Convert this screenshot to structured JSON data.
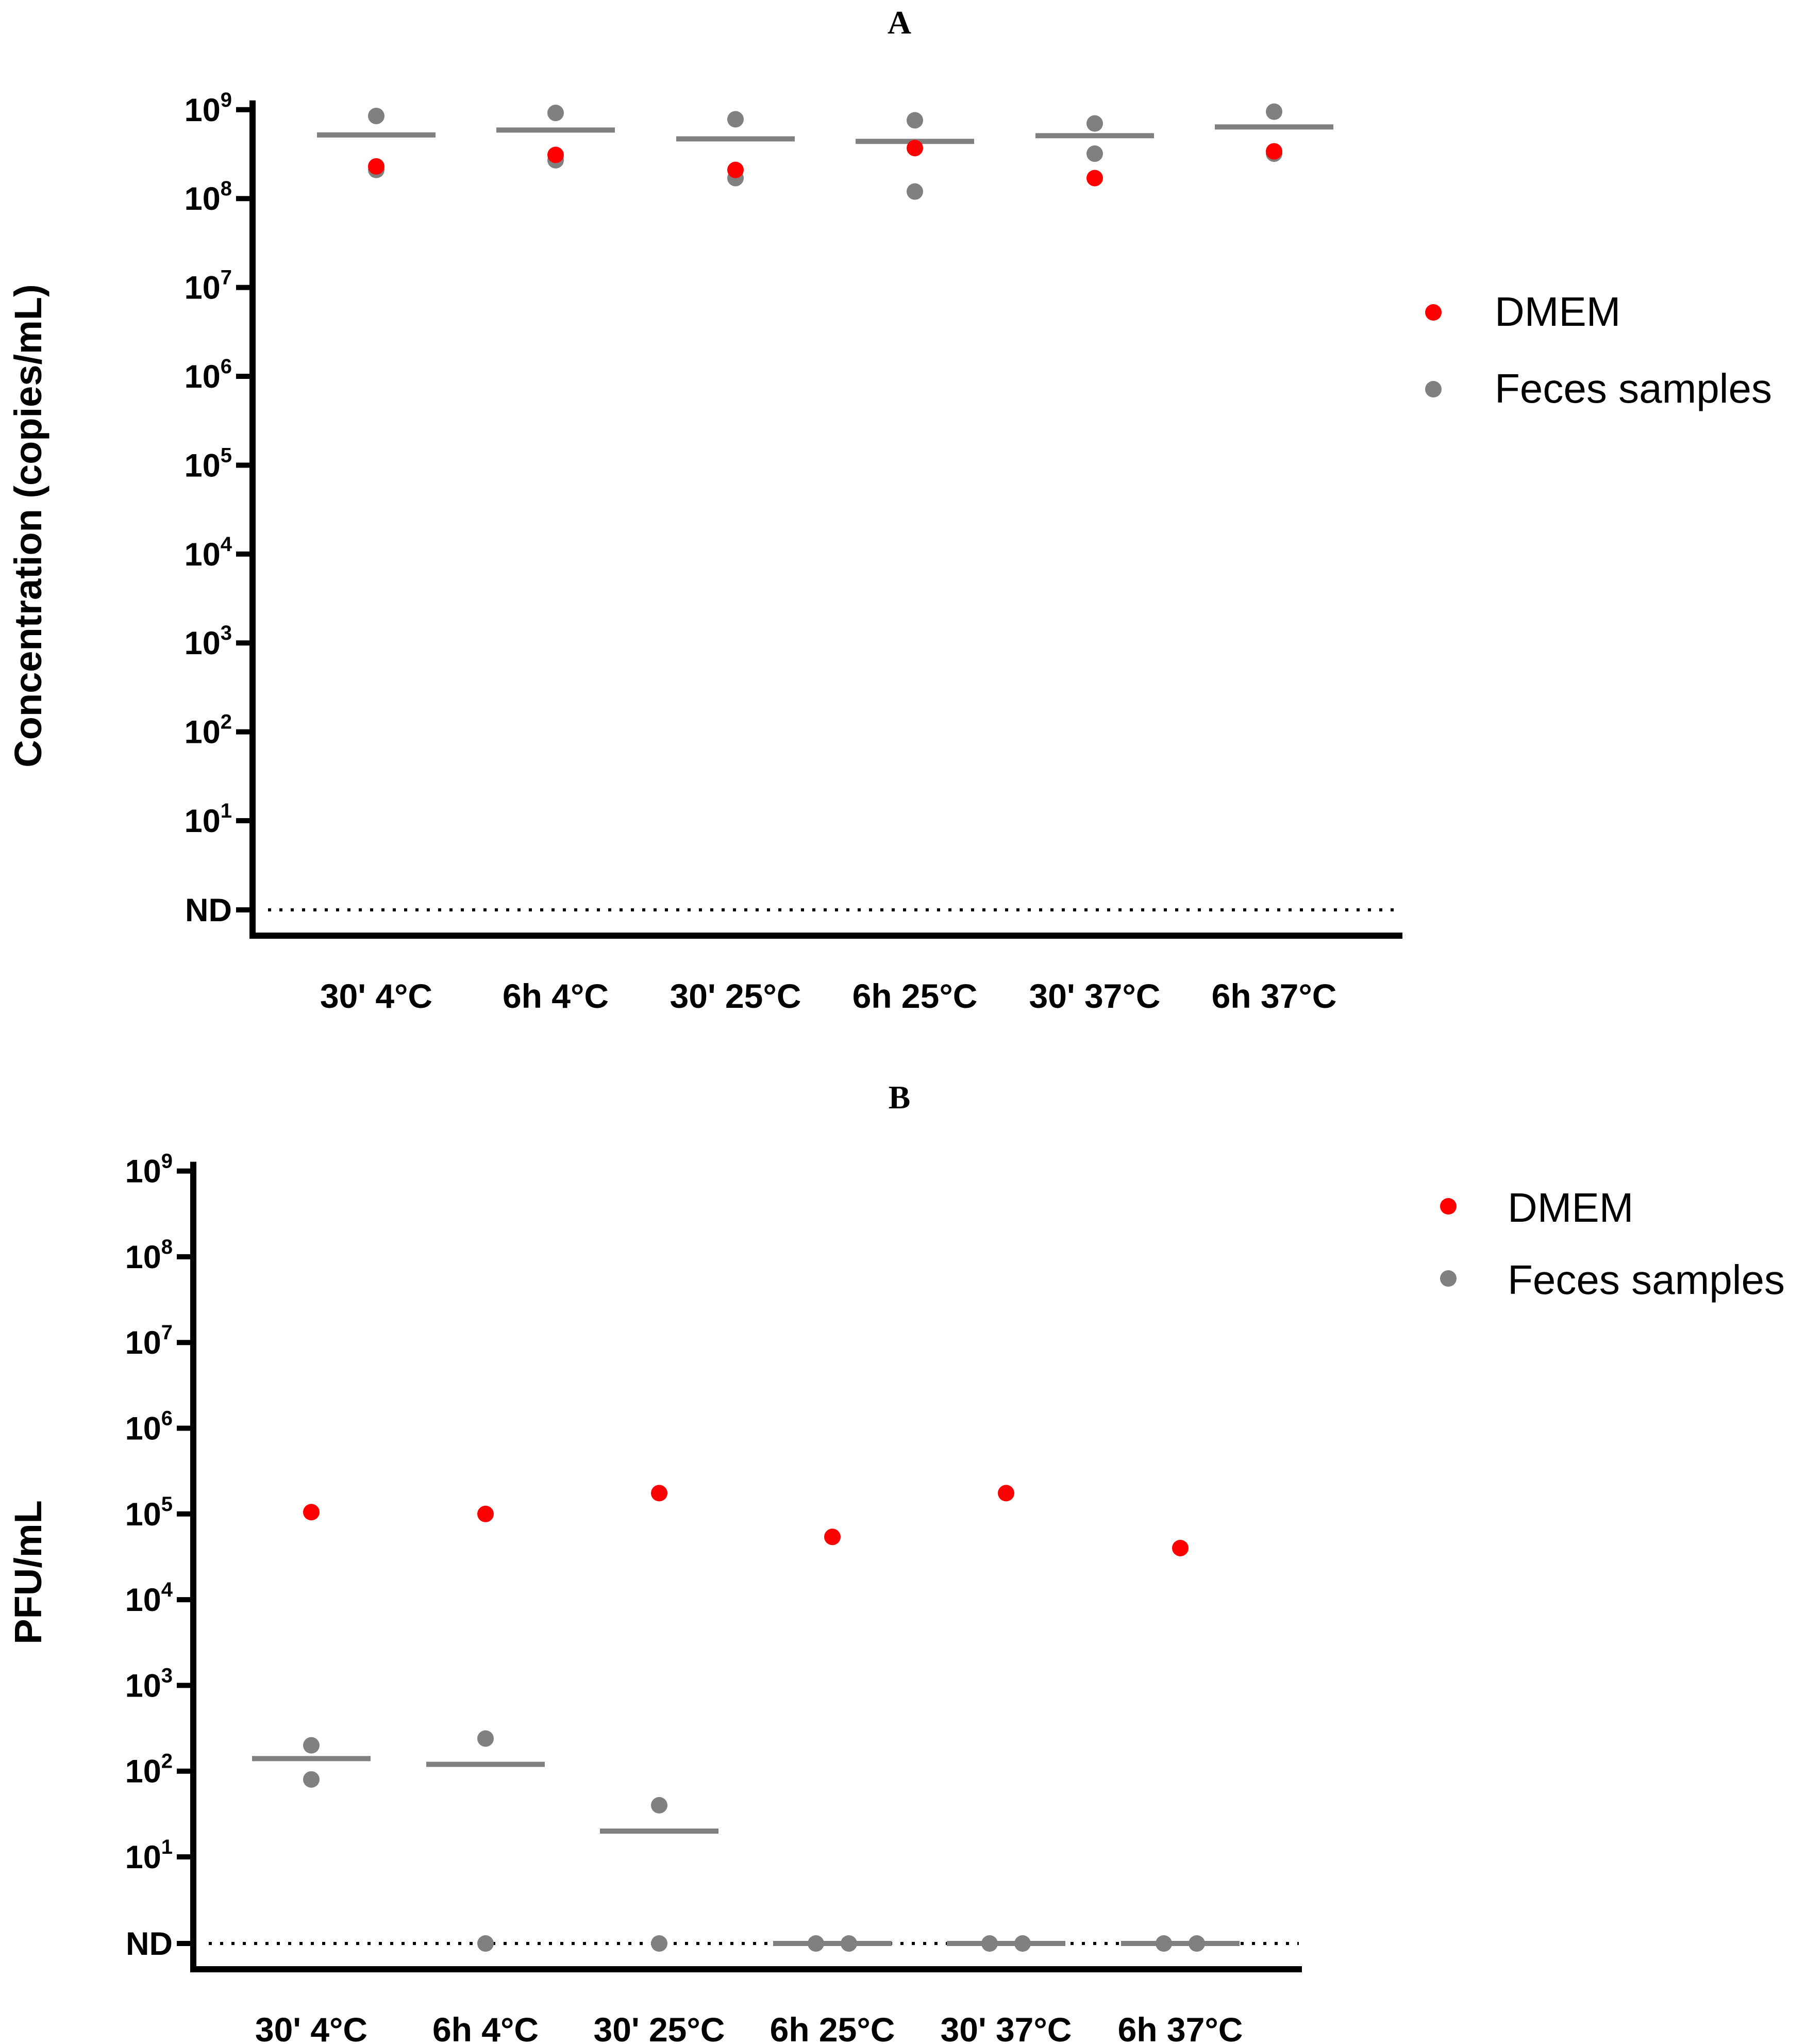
{
  "colors": {
    "dmem": "#ff0000",
    "feces": "#808080",
    "axis": "#000000"
  },
  "chart_data": [
    {
      "type": "scatter",
      "panel": "A",
      "title": "A",
      "ylabel": "Concentration (copies/mL)",
      "yscale": "log",
      "ylim_exp": [
        0,
        9
      ],
      "y_ticks": [
        {
          "label": "ND",
          "exp": null
        },
        {
          "label": "10",
          "exp": "1"
        },
        {
          "label": "10",
          "exp": "2"
        },
        {
          "label": "10",
          "exp": "3"
        },
        {
          "label": "10",
          "exp": "4"
        },
        {
          "label": "10",
          "exp": "5"
        },
        {
          "label": "10",
          "exp": "6"
        },
        {
          "label": "10",
          "exp": "7"
        },
        {
          "label": "10",
          "exp": "8"
        },
        {
          "label": "10",
          "exp": "9"
        }
      ],
      "categories": [
        "30' 4°C",
        "6h 4°C",
        "30' 25°C",
        "6h 25°C",
        "30' 37°C",
        "6h 37°C"
      ],
      "legend": [
        {
          "name": "DMEM",
          "color": "#ff0000"
        },
        {
          "name": "Feces samples",
          "color": "#808080"
        }
      ],
      "series": [
        {
          "name": "DMEM",
          "color": "#ff0000",
          "values": [
            230000000,
            310000000,
            210000000,
            370000000,
            170000000,
            340000000
          ]
        },
        {
          "name": "Feces samples",
          "color": "#808080",
          "values": [
            [
              850000000,
              210000000
            ],
            [
              920000000,
              270000000
            ],
            [
              780000000,
              170000000
            ],
            [
              760000000,
              120000000
            ],
            [
              700000000,
              320000000
            ],
            [
              950000000,
              320000000
            ]
          ]
        }
      ],
      "means": [
        520000000,
        590000000,
        470000000,
        440000000,
        510000000,
        640000000
      ],
      "nd_line": true
    },
    {
      "type": "scatter",
      "panel": "B",
      "title": "B",
      "ylabel": "PFU/mL",
      "yscale": "log",
      "ylim_exp": [
        0,
        9
      ],
      "y_ticks": [
        {
          "label": "ND",
          "exp": null
        },
        {
          "label": "10",
          "exp": "1"
        },
        {
          "label": "10",
          "exp": "2"
        },
        {
          "label": "10",
          "exp": "3"
        },
        {
          "label": "10",
          "exp": "4"
        },
        {
          "label": "10",
          "exp": "5"
        },
        {
          "label": "10",
          "exp": "6"
        },
        {
          "label": "10",
          "exp": "7"
        },
        {
          "label": "10",
          "exp": "8"
        },
        {
          "label": "10",
          "exp": "9"
        }
      ],
      "categories": [
        "30' 4°C",
        "6h 4°C",
        "30' 25°C",
        "6h 25°C",
        "30' 37°C",
        "6h 37°C"
      ],
      "legend": [
        {
          "name": "DMEM",
          "color": "#ff0000"
        },
        {
          "name": "Feces samples",
          "color": "#808080"
        }
      ],
      "series": [
        {
          "name": "DMEM",
          "color": "#ff0000",
          "values": [
            105000,
            100000,
            175000,
            54000,
            175000,
            40000
          ]
        },
        {
          "name": "Feces samples",
          "color": "#808080",
          "values": [
            [
              200,
              80
            ],
            [
              240,
              "ND"
            ],
            [
              40,
              "ND"
            ],
            [
              "ND",
              "ND"
            ],
            [
              "ND",
              "ND"
            ],
            [
              "ND",
              "ND"
            ]
          ]
        }
      ],
      "means": [
        140,
        120,
        20,
        "ND",
        "ND",
        "ND"
      ],
      "nd_line": true
    }
  ]
}
